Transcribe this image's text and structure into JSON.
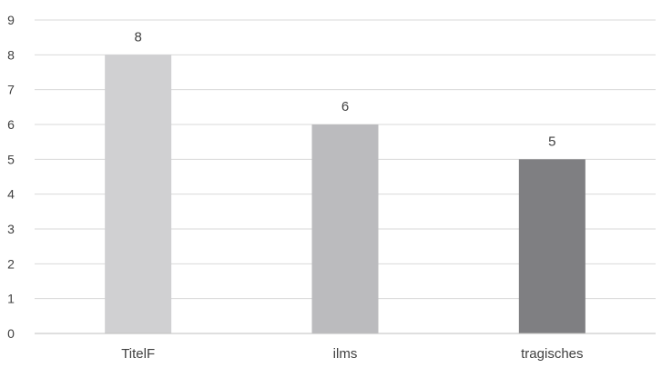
{
  "chart_data": {
    "type": "bar",
    "title": "",
    "xlabel": "",
    "ylabel": "",
    "categories": [
      "TitelF",
      "ilms",
      "tragisches"
    ],
    "values": [
      8,
      6,
      5
    ],
    "bar_colors": [
      "#d0d0d2",
      "#bbbbbe",
      "#7f7f82"
    ],
    "ylim": [
      0,
      9
    ],
    "yticks": [
      0,
      1,
      2,
      3,
      4,
      5,
      6,
      7,
      8,
      9
    ],
    "grid": true,
    "legend": "none",
    "data_labels": true
  }
}
